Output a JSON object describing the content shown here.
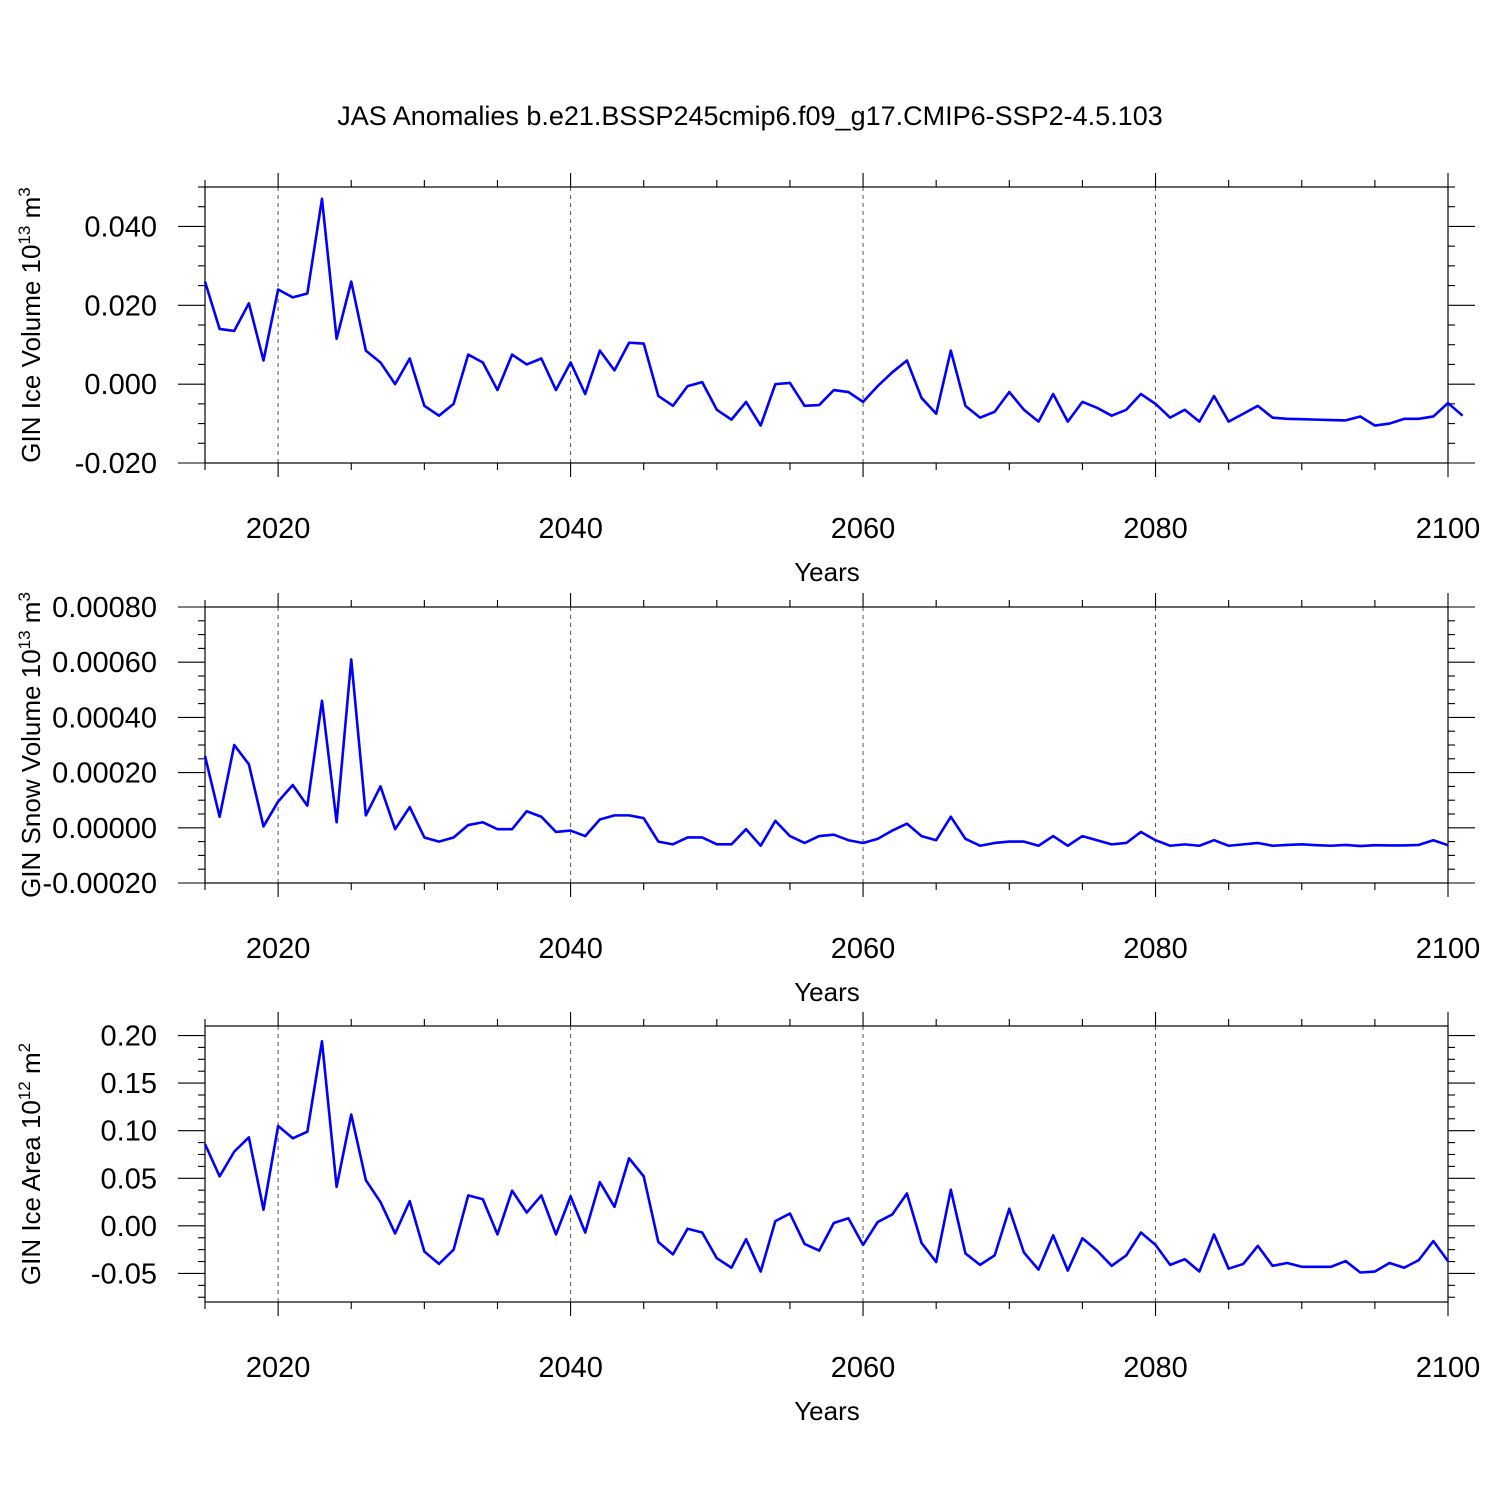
{
  "figure": {
    "title": "JAS Anomalies b.e21.BSSP245cmip6.f09_g17.CMIP6-SSP2-4.5.103"
  },
  "colors": {
    "series": "#0000ff",
    "axes": "#000000",
    "grid": "#555555"
  },
  "chart_data": [
    {
      "type": "line",
      "title": "JAS Anomalies b.e21.BSSP245cmip6.f09_g17.CMIP6-SSP2-4.5.103",
      "xlabel": "Years",
      "ylabel": "GIN Ice Volume 10",
      "ylabel_exp": "13",
      "ylabel_unit": " m",
      "ylabel_unit_exp": "3",
      "xlim": [
        2015,
        2100
      ],
      "ylim": [
        -0.02,
        0.05
      ],
      "x_ticks": [
        2020,
        2040,
        2060,
        2080,
        2100
      ],
      "x_tick_labels": [
        "2020",
        "2040",
        "2060",
        "2080",
        "2100"
      ],
      "y_ticks": [
        -0.02,
        0.0,
        0.02,
        0.04
      ],
      "y_tick_labels": [
        "-0.020",
        "0.000",
        "0.020",
        "0.040"
      ],
      "grid_x": true,
      "x_start": 2015,
      "values": [
        0.026,
        0.014,
        0.0135,
        0.0205,
        0.006,
        0.024,
        0.022,
        0.023,
        0.047,
        0.0115,
        0.026,
        0.0085,
        0.0055,
        0.0,
        0.0065,
        -0.0055,
        -0.008,
        -0.005,
        0.0075,
        0.0055,
        -0.0015,
        0.0075,
        0.005,
        0.0065,
        -0.0015,
        0.0055,
        -0.0025,
        0.0085,
        0.0035,
        0.0105,
        0.0103,
        -0.003,
        -0.0055,
        -0.0005,
        0.0005,
        -0.0065,
        -0.009,
        -0.0045,
        -0.0105,
        0.0,
        0.0003,
        -0.0055,
        -0.0053,
        -0.0015,
        -0.002,
        -0.0045,
        -0.0005,
        0.003,
        0.006,
        -0.0035,
        -0.0075,
        0.0085,
        -0.0055,
        -0.0085,
        -0.007,
        -0.002,
        -0.0065,
        -0.0095,
        -0.0025,
        -0.0095,
        -0.0045,
        -0.006,
        -0.008,
        -0.0065,
        -0.0025,
        -0.005,
        -0.0085,
        -0.0065,
        -0.0095,
        -0.003,
        -0.0095,
        -0.0075,
        -0.0055,
        -0.0085,
        -0.0088,
        -0.0089,
        -0.009,
        -0.0091,
        -0.0092,
        -0.0082,
        -0.0105,
        -0.01,
        -0.0088,
        -0.0088,
        -0.0082,
        -0.0048,
        -0.008
      ]
    },
    {
      "type": "line",
      "xlabel": "Years",
      "ylabel": "GIN Snow Volume 10",
      "ylabel_exp": "13",
      "ylabel_unit": " m",
      "ylabel_unit_exp": "3",
      "xlim": [
        2015,
        2100
      ],
      "ylim": [
        -0.0002,
        0.0008
      ],
      "x_ticks": [
        2020,
        2040,
        2060,
        2080,
        2100
      ],
      "x_tick_labels": [
        "2020",
        "2040",
        "2060",
        "2080",
        "2100"
      ],
      "y_ticks": [
        -0.0002,
        0.0,
        0.0002,
        0.0004,
        0.0006,
        0.0008
      ],
      "y_tick_labels": [
        "-0.00020",
        "0.00000",
        "0.00020",
        "0.00040",
        "0.00060",
        "0.00080"
      ],
      "grid_x": true,
      "x_start": 2015,
      "values": [
        0.00026,
        4e-05,
        0.0003,
        0.00023,
        5e-06,
        9.5e-05,
        0.000155,
        8e-05,
        0.00046,
        2e-05,
        0.00061,
        4.5e-05,
        0.00015,
        -5e-06,
        7.5e-05,
        -3.5e-05,
        -5e-05,
        -3.5e-05,
        1e-05,
        2e-05,
        -5e-06,
        -5e-06,
        6e-05,
        4e-05,
        -1.5e-05,
        -1e-05,
        -3e-05,
        3e-05,
        4.5e-05,
        4.5e-05,
        3.5e-05,
        -5e-05,
        -6e-05,
        -3.5e-05,
        -3.5e-05,
        -6e-05,
        -6e-05,
        -5e-06,
        -6.5e-05,
        2.5e-05,
        -3e-05,
        -5.5e-05,
        -3e-05,
        -2.5e-05,
        -4.5e-05,
        -5.5e-05,
        -4e-05,
        -1e-05,
        1.5e-05,
        -3e-05,
        -4.5e-05,
        4e-05,
        -4e-05,
        -6.5e-05,
        -5.5e-05,
        -5e-05,
        -5e-05,
        -6.5e-05,
        -3e-05,
        -6.5e-05,
        -3e-05,
        -4.5e-05,
        -6e-05,
        -5.5e-05,
        -1.5e-05,
        -4.5e-05,
        -6.5e-05,
        -6e-05,
        -6.5e-05,
        -4.5e-05,
        -6.5e-05,
        -6e-05,
        -5.5e-05,
        -6.5e-05,
        -6.2e-05,
        -6e-05,
        -6.3e-05,
        -6.5e-05,
        -6.2e-05,
        -6.6e-05,
        -6.3e-05,
        -6.4e-05,
        -6.4e-05,
        -6.2e-05,
        -4.5e-05,
        -6.3e-05
      ]
    },
    {
      "type": "line",
      "xlabel": "Years",
      "ylabel": "GIN Ice Area 10",
      "ylabel_exp": "12",
      "ylabel_unit": " m",
      "ylabel_unit_exp": "2",
      "xlim": [
        2015,
        2100
      ],
      "ylim": [
        -0.08,
        0.21
      ],
      "x_ticks": [
        2020,
        2040,
        2060,
        2080,
        2100
      ],
      "x_tick_labels": [
        "2020",
        "2040",
        "2060",
        "2080",
        "2100"
      ],
      "y_ticks": [
        -0.05,
        0.0,
        0.05,
        0.1,
        0.15,
        0.2
      ],
      "y_tick_labels": [
        "-0.05",
        "0.00",
        "0.05",
        "0.10",
        "0.15",
        "0.20"
      ],
      "grid_x": true,
      "x_start": 2015,
      "values": [
        0.086,
        0.052,
        0.078,
        0.093,
        0.017,
        0.105,
        0.092,
        0.099,
        0.194,
        0.041,
        0.117,
        0.048,
        0.025,
        -0.008,
        0.026,
        -0.027,
        -0.04,
        -0.025,
        0.032,
        0.028,
        -0.009,
        0.037,
        0.014,
        0.032,
        -0.009,
        0.031,
        -0.007,
        0.046,
        0.02,
        0.071,
        0.052,
        -0.017,
        -0.03,
        -0.003,
        -0.007,
        -0.034,
        -0.044,
        -0.014,
        -0.048,
        0.005,
        0.013,
        -0.019,
        -0.026,
        0.003,
        0.008,
        -0.02,
        0.004,
        0.012,
        0.034,
        -0.018,
        -0.038,
        0.038,
        -0.029,
        -0.041,
        -0.031,
        0.018,
        -0.028,
        -0.046,
        -0.01,
        -0.047,
        -0.013,
        -0.026,
        -0.042,
        -0.031,
        -0.007,
        -0.02,
        -0.041,
        -0.035,
        -0.048,
        -0.009,
        -0.045,
        -0.04,
        -0.021,
        -0.042,
        -0.039,
        -0.043,
        -0.043,
        -0.043,
        -0.037,
        -0.049,
        -0.048,
        -0.039,
        -0.044,
        -0.036,
        -0.016,
        -0.037
      ]
    }
  ]
}
